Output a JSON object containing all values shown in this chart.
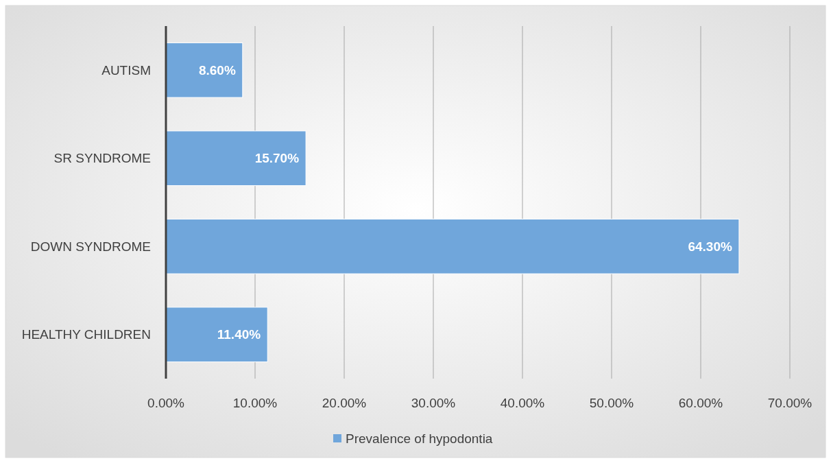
{
  "chart_data": {
    "type": "bar",
    "orientation": "horizontal",
    "categories": [
      "AUTISM",
      "SR SYNDROME",
      "DOWN SYNDROME",
      "HEALTHY CHILDREN"
    ],
    "series": [
      {
        "name": "Prevalence of hypodontia",
        "color": "#70a6db",
        "values": [
          8.6,
          15.7,
          64.3,
          11.4
        ],
        "value_labels": [
          "8.60%",
          "15.70%",
          "64.30%",
          "11.40%"
        ]
      }
    ],
    "xlim": [
      0,
      70
    ],
    "xticks": [
      {
        "value": 0,
        "label": "0.00%"
      },
      {
        "value": 10,
        "label": "10.00%"
      },
      {
        "value": 20,
        "label": "20.00%"
      },
      {
        "value": 30,
        "label": "30.00%"
      },
      {
        "value": 40,
        "label": "40.00%"
      },
      {
        "value": 50,
        "label": "50.00%"
      },
      {
        "value": 60,
        "label": "60.00%"
      },
      {
        "value": 70,
        "label": "70.00%"
      }
    ],
    "grid": "x",
    "legend": "bottom"
  }
}
